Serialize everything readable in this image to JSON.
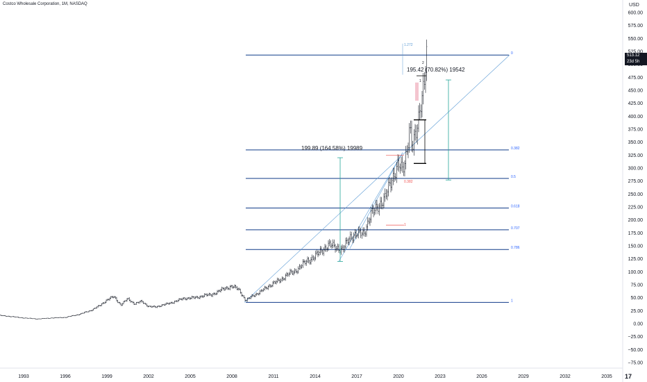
{
  "header": {
    "title": "Costco Wholesale Corporation, 1M, NASDAQ",
    "currency": "USD"
  },
  "price_tag": {
    "price": "513.12",
    "countdown": "23d 5h"
  },
  "logo": {
    "text": "17",
    "icon": "tradingview-logo-icon"
  },
  "colors": {
    "fib_line": "#0f3a88",
    "fib_label": "#2962ff",
    "measure": "#26a69a",
    "trend": "#5b9bd5",
    "candle": "#131722",
    "red_marker": "#ef5350",
    "pink_box": "#f4c5cf"
  },
  "chart_data": {
    "type": "line",
    "title": "Costco Wholesale Corporation, 1M, NASDAQ",
    "xlabel": "",
    "ylabel": "",
    "x_range": [
      1991.2,
      2036.3
    ],
    "ylim": [
      -100,
      612
    ],
    "y_ticks": [
      -75,
      -50,
      -25,
      0,
      25,
      50,
      75,
      100,
      125,
      150,
      175,
      200,
      225,
      250,
      275,
      300,
      325,
      350,
      375,
      400,
      425,
      450,
      475,
      500,
      525,
      550,
      575,
      600
    ],
    "x_ticks": [
      1993,
      1996,
      1999,
      2002,
      2005,
      2008,
      2011,
      2014,
      2017,
      2020,
      2023,
      2026,
      2029,
      2032,
      2035
    ],
    "grid": false,
    "legend": "none",
    "last_price": 513.12,
    "series": [
      {
        "x": [
          1991.2,
          1992.0,
          1993.0,
          1994.0,
          1995.0,
          1996.0,
          1997.0,
          1997.8,
          1998.5,
          1999.0,
          1999.5,
          2000.0,
          2000.5,
          2001.0,
          2001.5,
          2002.0,
          2002.5,
          2003.0,
          2003.5,
          2004.0,
          2004.5,
          2005.0,
          2005.5,
          2006.0,
          2006.5,
          2007.0,
          2007.5,
          2008.0,
          2008.5,
          2009.0,
          2009.5,
          2010.0,
          2010.5,
          2011.0,
          2011.5,
          2012.0,
          2012.5,
          2013.0,
          2013.5,
          2014.0,
          2014.5,
          2015.0,
          2015.5,
          2016.0,
          2016.5,
          2017.0,
          2017.5,
          2018.0,
          2018.5,
          2019.0,
          2019.5,
          2020.0,
          2020.3,
          2020.6,
          2020.8,
          2021.0,
          2021.3,
          2021.6,
          2021.9,
          2022.0
        ],
        "values": [
          16,
          14,
          11,
          9,
          11,
          12,
          18,
          25,
          35,
          46,
          52,
          36,
          48,
          38,
          43,
          33,
          32,
          36,
          39,
          44,
          48,
          50,
          50,
          55,
          55,
          62,
          68,
          72,
          66,
          44,
          54,
          60,
          70,
          78,
          84,
          95,
          100,
          112,
          122,
          130,
          142,
          152,
          148,
          142,
          168,
          172,
          175,
          208,
          228,
          238,
          280,
          305,
          295,
          335,
          380,
          335,
          370,
          430,
          470,
          513
        ]
      }
    ],
    "annotations": [
      {
        "type": "fib_level",
        "label": "0",
        "value": 518
      },
      {
        "type": "fib_level",
        "label": "0.382",
        "value": 335
      },
      {
        "type": "fib_level",
        "label": "0.5",
        "value": 280
      },
      {
        "type": "fib_level",
        "label": "0.618",
        "value": 223
      },
      {
        "type": "fib_level",
        "label": "0.707",
        "value": 181
      },
      {
        "type": "fib_level",
        "label": "0.786",
        "value": 143
      },
      {
        "type": "fib_level",
        "label": "1",
        "value": 41
      },
      {
        "type": "measure",
        "label": "199.89 (164.58%) 19989"
      },
      {
        "type": "measure",
        "label": "195.42 (70.82%) 19542"
      },
      {
        "type": "marker",
        "label": "1.272"
      },
      {
        "type": "marker",
        "label": "0.382"
      },
      {
        "type": "marker",
        "label": "1"
      },
      {
        "type": "marker",
        "label": "2"
      },
      {
        "type": "marker",
        "label": "1"
      }
    ]
  }
}
